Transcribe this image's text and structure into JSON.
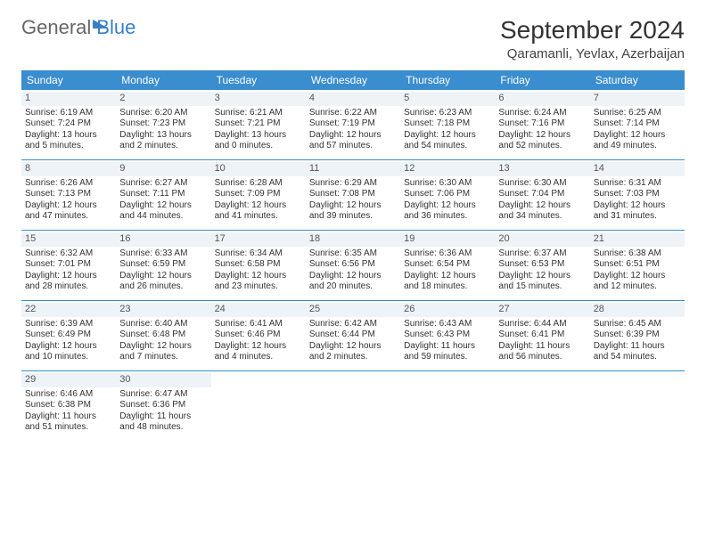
{
  "brand": {
    "part1": "General",
    "part2": "Blue"
  },
  "title": "September 2024",
  "location": "Qaramanli, Yevlax, Azerbaijan",
  "colors": {
    "header_bg": "#3a8dce",
    "header_text": "#ffffff",
    "daynum_bg": "#eef3f7",
    "week_divider": "#3a8dce",
    "text": "#333333",
    "brand_blue": "#3a7fc4"
  },
  "days_of_week": [
    "Sunday",
    "Monday",
    "Tuesday",
    "Wednesday",
    "Thursday",
    "Friday",
    "Saturday"
  ],
  "weeks": [
    [
      {
        "n": "1",
        "sr": "Sunrise: 6:19 AM",
        "ss": "Sunset: 7:24 PM",
        "dl1": "Daylight: 13 hours",
        "dl2": "and 5 minutes."
      },
      {
        "n": "2",
        "sr": "Sunrise: 6:20 AM",
        "ss": "Sunset: 7:23 PM",
        "dl1": "Daylight: 13 hours",
        "dl2": "and 2 minutes."
      },
      {
        "n": "3",
        "sr": "Sunrise: 6:21 AM",
        "ss": "Sunset: 7:21 PM",
        "dl1": "Daylight: 13 hours",
        "dl2": "and 0 minutes."
      },
      {
        "n": "4",
        "sr": "Sunrise: 6:22 AM",
        "ss": "Sunset: 7:19 PM",
        "dl1": "Daylight: 12 hours",
        "dl2": "and 57 minutes."
      },
      {
        "n": "5",
        "sr": "Sunrise: 6:23 AM",
        "ss": "Sunset: 7:18 PM",
        "dl1": "Daylight: 12 hours",
        "dl2": "and 54 minutes."
      },
      {
        "n": "6",
        "sr": "Sunrise: 6:24 AM",
        "ss": "Sunset: 7:16 PM",
        "dl1": "Daylight: 12 hours",
        "dl2": "and 52 minutes."
      },
      {
        "n": "7",
        "sr": "Sunrise: 6:25 AM",
        "ss": "Sunset: 7:14 PM",
        "dl1": "Daylight: 12 hours",
        "dl2": "and 49 minutes."
      }
    ],
    [
      {
        "n": "8",
        "sr": "Sunrise: 6:26 AM",
        "ss": "Sunset: 7:13 PM",
        "dl1": "Daylight: 12 hours",
        "dl2": "and 47 minutes."
      },
      {
        "n": "9",
        "sr": "Sunrise: 6:27 AM",
        "ss": "Sunset: 7:11 PM",
        "dl1": "Daylight: 12 hours",
        "dl2": "and 44 minutes."
      },
      {
        "n": "10",
        "sr": "Sunrise: 6:28 AM",
        "ss": "Sunset: 7:09 PM",
        "dl1": "Daylight: 12 hours",
        "dl2": "and 41 minutes."
      },
      {
        "n": "11",
        "sr": "Sunrise: 6:29 AM",
        "ss": "Sunset: 7:08 PM",
        "dl1": "Daylight: 12 hours",
        "dl2": "and 39 minutes."
      },
      {
        "n": "12",
        "sr": "Sunrise: 6:30 AM",
        "ss": "Sunset: 7:06 PM",
        "dl1": "Daylight: 12 hours",
        "dl2": "and 36 minutes."
      },
      {
        "n": "13",
        "sr": "Sunrise: 6:30 AM",
        "ss": "Sunset: 7:04 PM",
        "dl1": "Daylight: 12 hours",
        "dl2": "and 34 minutes."
      },
      {
        "n": "14",
        "sr": "Sunrise: 6:31 AM",
        "ss": "Sunset: 7:03 PM",
        "dl1": "Daylight: 12 hours",
        "dl2": "and 31 minutes."
      }
    ],
    [
      {
        "n": "15",
        "sr": "Sunrise: 6:32 AM",
        "ss": "Sunset: 7:01 PM",
        "dl1": "Daylight: 12 hours",
        "dl2": "and 28 minutes."
      },
      {
        "n": "16",
        "sr": "Sunrise: 6:33 AM",
        "ss": "Sunset: 6:59 PM",
        "dl1": "Daylight: 12 hours",
        "dl2": "and 26 minutes."
      },
      {
        "n": "17",
        "sr": "Sunrise: 6:34 AM",
        "ss": "Sunset: 6:58 PM",
        "dl1": "Daylight: 12 hours",
        "dl2": "and 23 minutes."
      },
      {
        "n": "18",
        "sr": "Sunrise: 6:35 AM",
        "ss": "Sunset: 6:56 PM",
        "dl1": "Daylight: 12 hours",
        "dl2": "and 20 minutes."
      },
      {
        "n": "19",
        "sr": "Sunrise: 6:36 AM",
        "ss": "Sunset: 6:54 PM",
        "dl1": "Daylight: 12 hours",
        "dl2": "and 18 minutes."
      },
      {
        "n": "20",
        "sr": "Sunrise: 6:37 AM",
        "ss": "Sunset: 6:53 PM",
        "dl1": "Daylight: 12 hours",
        "dl2": "and 15 minutes."
      },
      {
        "n": "21",
        "sr": "Sunrise: 6:38 AM",
        "ss": "Sunset: 6:51 PM",
        "dl1": "Daylight: 12 hours",
        "dl2": "and 12 minutes."
      }
    ],
    [
      {
        "n": "22",
        "sr": "Sunrise: 6:39 AM",
        "ss": "Sunset: 6:49 PM",
        "dl1": "Daylight: 12 hours",
        "dl2": "and 10 minutes."
      },
      {
        "n": "23",
        "sr": "Sunrise: 6:40 AM",
        "ss": "Sunset: 6:48 PM",
        "dl1": "Daylight: 12 hours",
        "dl2": "and 7 minutes."
      },
      {
        "n": "24",
        "sr": "Sunrise: 6:41 AM",
        "ss": "Sunset: 6:46 PM",
        "dl1": "Daylight: 12 hours",
        "dl2": "and 4 minutes."
      },
      {
        "n": "25",
        "sr": "Sunrise: 6:42 AM",
        "ss": "Sunset: 6:44 PM",
        "dl1": "Daylight: 12 hours",
        "dl2": "and 2 minutes."
      },
      {
        "n": "26",
        "sr": "Sunrise: 6:43 AM",
        "ss": "Sunset: 6:43 PM",
        "dl1": "Daylight: 11 hours",
        "dl2": "and 59 minutes."
      },
      {
        "n": "27",
        "sr": "Sunrise: 6:44 AM",
        "ss": "Sunset: 6:41 PM",
        "dl1": "Daylight: 11 hours",
        "dl2": "and 56 minutes."
      },
      {
        "n": "28",
        "sr": "Sunrise: 6:45 AM",
        "ss": "Sunset: 6:39 PM",
        "dl1": "Daylight: 11 hours",
        "dl2": "and 54 minutes."
      }
    ],
    [
      {
        "n": "29",
        "sr": "Sunrise: 6:46 AM",
        "ss": "Sunset: 6:38 PM",
        "dl1": "Daylight: 11 hours",
        "dl2": "and 51 minutes."
      },
      {
        "n": "30",
        "sr": "Sunrise: 6:47 AM",
        "ss": "Sunset: 6:36 PM",
        "dl1": "Daylight: 11 hours",
        "dl2": "and 48 minutes."
      },
      null,
      null,
      null,
      null,
      null
    ]
  ]
}
